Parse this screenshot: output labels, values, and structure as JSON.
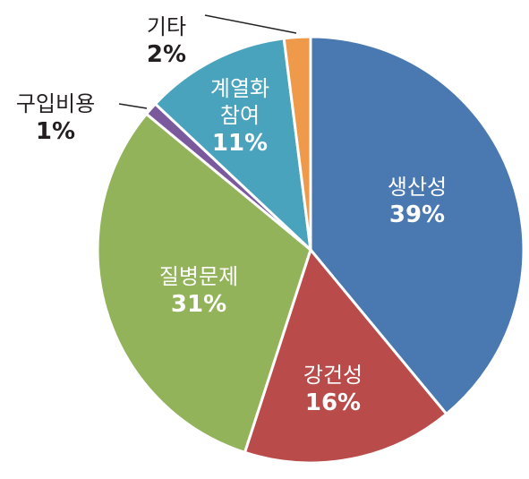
{
  "chart_data": {
    "type": "pie",
    "categories": [
      "생산성",
      "강건성",
      "질병문제",
      "구입비용",
      "계열화\n참여",
      "기타"
    ],
    "values": [
      39,
      16,
      31,
      1,
      11,
      2
    ],
    "value_labels": [
      "39%",
      "16%",
      "31%",
      "1%",
      "11%",
      "2%"
    ],
    "colors": [
      "#4a78b0",
      "#b94c4b",
      "#93b35a",
      "#7a5a9c",
      "#4aa3bd",
      "#ef9a4b"
    ]
  }
}
